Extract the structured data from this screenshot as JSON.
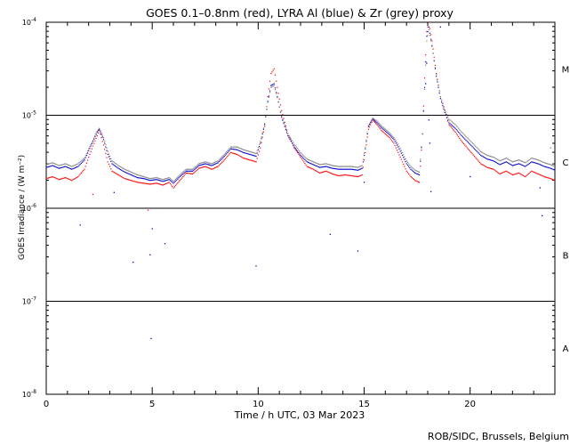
{
  "chart_data": {
    "type": "scatter",
    "title": "GOES 0.1–0.8nm (red), LYRA Al (blue) & Zr (grey) proxy",
    "xlabel": "Time / h UTC, 03 Mar 2023",
    "ylabel": "GOES Irradiance / (W m⁻²)",
    "credit": "ROB/SIDC, Brussels, Belgium",
    "xlim": [
      0,
      24
    ],
    "ylim_log10": [
      -8,
      -4
    ],
    "x_ticks": [
      {
        "v": 0,
        "label": "0"
      },
      {
        "v": 5,
        "label": "5"
      },
      {
        "v": 10,
        "label": "10"
      },
      {
        "v": 15,
        "label": "15"
      },
      {
        "v": 20,
        "label": "20"
      }
    ],
    "y_ticks": [
      {
        "exp": -4,
        "base": "10",
        "sup": "-4"
      },
      {
        "exp": -5,
        "base": "10",
        "sup": "-5"
      },
      {
        "exp": -6,
        "base": "10",
        "sup": "-6"
      },
      {
        "exp": -7,
        "base": "10",
        "sup": "-7"
      },
      {
        "exp": -8,
        "base": "10",
        "sup": "-8"
      }
    ],
    "class_lines_log10": [
      -5,
      -6,
      -7
    ],
    "flare_classes": [
      {
        "label": "M",
        "log10": -4.5
      },
      {
        "label": "C",
        "log10": -5.5
      },
      {
        "label": "B",
        "log10": -6.5
      },
      {
        "label": "A",
        "log10": -7.5
      }
    ],
    "series": [
      {
        "name": "GOES 0.1-0.8nm",
        "color": "#ff0000",
        "x": [
          0,
          0.3,
          0.6,
          0.9,
          1.2,
          1.5,
          1.8,
          2.0,
          2.2,
          2.4,
          2.5,
          2.7,
          2.9,
          3.1,
          3.4,
          3.7,
          4.0,
          4.3,
          4.6,
          4.9,
          5.2,
          5.5,
          5.8,
          6.0,
          6.3,
          6.6,
          6.9,
          7.2,
          7.5,
          7.8,
          8.1,
          8.4,
          8.7,
          9.0,
          9.3,
          9.6,
          9.9,
          10.1,
          10.3,
          10.45,
          10.6,
          10.75,
          10.9,
          11.1,
          11.4,
          11.7,
          12.0,
          12.3,
          12.6,
          12.9,
          13.2,
          13.5,
          13.8,
          14.1,
          14.4,
          14.7,
          14.9,
          15.05,
          15.2,
          15.4,
          15.6,
          15.8,
          16.0,
          16.2,
          16.4,
          16.6,
          16.8,
          17.0,
          17.2,
          17.4,
          17.6,
          17.75,
          17.85,
          17.95,
          18.05,
          18.2,
          18.4,
          18.6,
          18.8,
          19.0,
          19.3,
          19.6,
          19.9,
          20.2,
          20.5,
          20.8,
          21.1,
          21.4,
          21.7,
          22.0,
          22.3,
          22.6,
          22.9,
          23.2,
          23.5,
          23.8,
          24.0
        ],
        "log10_irradiance": [
          -5.68,
          -5.66,
          -5.69,
          -5.67,
          -5.7,
          -5.66,
          -5.58,
          -5.45,
          -5.33,
          -5.22,
          -5.16,
          -5.32,
          -5.5,
          -5.6,
          -5.64,
          -5.68,
          -5.7,
          -5.72,
          -5.73,
          -5.74,
          -5.73,
          -5.75,
          -5.72,
          -5.78,
          -5.7,
          -5.62,
          -5.63,
          -5.57,
          -5.55,
          -5.58,
          -5.55,
          -5.48,
          -5.4,
          -5.42,
          -5.46,
          -5.48,
          -5.5,
          -5.35,
          -5.12,
          -4.8,
          -4.55,
          -4.5,
          -4.7,
          -4.95,
          -5.2,
          -5.35,
          -5.45,
          -5.55,
          -5.58,
          -5.62,
          -5.6,
          -5.63,
          -5.65,
          -5.64,
          -5.65,
          -5.66,
          -5.64,
          -5.4,
          -5.15,
          -5.05,
          -5.1,
          -5.16,
          -5.2,
          -5.24,
          -5.3,
          -5.4,
          -5.5,
          -5.6,
          -5.66,
          -5.7,
          -5.72,
          -5.2,
          -4.6,
          -4.1,
          -4.0,
          -4.2,
          -4.55,
          -4.8,
          -4.95,
          -5.1,
          -5.18,
          -5.28,
          -5.36,
          -5.44,
          -5.52,
          -5.56,
          -5.58,
          -5.63,
          -5.6,
          -5.64,
          -5.62,
          -5.66,
          -5.6,
          -5.63,
          -5.66,
          -5.68,
          -5.7
        ]
      },
      {
        "name": "LYRA Al proxy",
        "color": "#0000cc",
        "x": [
          0,
          0.3,
          0.6,
          0.9,
          1.2,
          1.5,
          1.8,
          2.0,
          2.2,
          2.4,
          2.5,
          2.7,
          2.9,
          3.1,
          3.4,
          3.7,
          4.0,
          4.3,
          4.6,
          4.9,
          5.2,
          5.5,
          5.8,
          6.0,
          6.3,
          6.6,
          6.9,
          7.2,
          7.5,
          7.8,
          8.1,
          8.4,
          8.7,
          9.0,
          9.3,
          9.6,
          9.9,
          10.1,
          10.3,
          10.45,
          10.6,
          10.75,
          10.9,
          11.1,
          11.4,
          11.7,
          12.0,
          12.3,
          12.6,
          12.9,
          13.2,
          13.5,
          13.8,
          14.1,
          14.4,
          14.7,
          14.9,
          15.05,
          15.2,
          15.4,
          15.6,
          15.8,
          16.0,
          16.2,
          16.4,
          16.6,
          16.8,
          17.0,
          17.2,
          17.4,
          17.6,
          17.75,
          17.85,
          17.95,
          18.05,
          18.2,
          18.4,
          18.6,
          18.8,
          19.0,
          19.3,
          19.6,
          19.9,
          20.2,
          20.5,
          20.8,
          21.1,
          21.4,
          21.7,
          22.0,
          22.3,
          22.6,
          22.9,
          23.2,
          23.5,
          23.8,
          24.0
        ],
        "log10_irradiance": [
          -5.56,
          -5.54,
          -5.57,
          -5.55,
          -5.58,
          -5.55,
          -5.48,
          -5.38,
          -5.28,
          -5.18,
          -5.15,
          -5.26,
          -5.42,
          -5.52,
          -5.57,
          -5.61,
          -5.64,
          -5.67,
          -5.68,
          -5.7,
          -5.69,
          -5.71,
          -5.69,
          -5.73,
          -5.66,
          -5.6,
          -5.6,
          -5.54,
          -5.52,
          -5.54,
          -5.51,
          -5.44,
          -5.36,
          -5.37,
          -5.4,
          -5.42,
          -5.44,
          -5.3,
          -5.1,
          -4.85,
          -4.68,
          -4.66,
          -4.8,
          -5.02,
          -5.22,
          -5.34,
          -5.43,
          -5.5,
          -5.53,
          -5.56,
          -5.55,
          -5.57,
          -5.58,
          -5.58,
          -5.58,
          -5.59,
          -5.57,
          -5.36,
          -5.12,
          -5.04,
          -5.08,
          -5.13,
          -5.17,
          -5.21,
          -5.26,
          -5.34,
          -5.43,
          -5.52,
          -5.58,
          -5.62,
          -5.64,
          -5.2,
          -4.7,
          -4.15,
          -4.05,
          -4.25,
          -4.58,
          -4.82,
          -4.97,
          -5.08,
          -5.14,
          -5.22,
          -5.29,
          -5.36,
          -5.43,
          -5.47,
          -5.49,
          -5.53,
          -5.5,
          -5.54,
          -5.52,
          -5.55,
          -5.5,
          -5.52,
          -5.55,
          -5.57,
          -5.59
        ]
      },
      {
        "name": "LYRA Zr proxy",
        "color": "#808080",
        "x": [
          0,
          0.3,
          0.6,
          0.9,
          1.2,
          1.5,
          1.8,
          2.0,
          2.2,
          2.4,
          2.5,
          2.7,
          2.9,
          3.1,
          3.4,
          3.7,
          4.0,
          4.3,
          4.6,
          4.9,
          5.2,
          5.5,
          5.8,
          6.0,
          6.3,
          6.6,
          6.9,
          7.2,
          7.5,
          7.8,
          8.1,
          8.4,
          8.7,
          9.0,
          9.3,
          9.6,
          9.9,
          10.1,
          10.3,
          10.45,
          10.6,
          10.75,
          10.9,
          11.1,
          11.4,
          11.7,
          12.0,
          12.3,
          12.6,
          12.9,
          13.2,
          13.5,
          13.8,
          14.1,
          14.4,
          14.7,
          14.9,
          15.05,
          15.2,
          15.4,
          15.6,
          15.8,
          16.0,
          16.2,
          16.4,
          16.6,
          16.8,
          17.0,
          17.2,
          17.4,
          17.6,
          17.75,
          17.85,
          17.95,
          18.05,
          18.2,
          18.4,
          18.6,
          18.8,
          19.0,
          19.3,
          19.6,
          19.9,
          20.2,
          20.5,
          20.8,
          21.1,
          21.4,
          21.7,
          22.0,
          22.3,
          22.6,
          22.9,
          23.2,
          23.5,
          23.8,
          24.0
        ],
        "log10_irradiance": [
          -5.53,
          -5.51,
          -5.54,
          -5.52,
          -5.55,
          -5.52,
          -5.46,
          -5.36,
          -5.27,
          -5.17,
          -5.14,
          -5.24,
          -5.39,
          -5.49,
          -5.54,
          -5.58,
          -5.61,
          -5.64,
          -5.66,
          -5.68,
          -5.67,
          -5.69,
          -5.67,
          -5.71,
          -5.64,
          -5.58,
          -5.58,
          -5.52,
          -5.5,
          -5.52,
          -5.49,
          -5.42,
          -5.34,
          -5.34,
          -5.37,
          -5.39,
          -5.41,
          -5.28,
          -5.09,
          -4.86,
          -4.7,
          -4.68,
          -4.81,
          -5.01,
          -5.2,
          -5.31,
          -5.4,
          -5.47,
          -5.5,
          -5.53,
          -5.52,
          -5.54,
          -5.55,
          -5.55,
          -5.55,
          -5.56,
          -5.54,
          -5.34,
          -5.11,
          -5.03,
          -5.06,
          -5.11,
          -5.15,
          -5.19,
          -5.24,
          -5.31,
          -5.4,
          -5.49,
          -5.55,
          -5.59,
          -5.61,
          -5.2,
          -4.72,
          -4.2,
          -4.08,
          -4.26,
          -4.56,
          -4.8,
          -4.94,
          -5.04,
          -5.1,
          -5.18,
          -5.25,
          -5.32,
          -5.39,
          -5.43,
          -5.45,
          -5.49,
          -5.46,
          -5.5,
          -5.48,
          -5.51,
          -5.46,
          -5.48,
          -5.51,
          -5.53,
          -5.55
        ]
      }
    ],
    "outliers": [
      {
        "x": 1.6,
        "log10_irradiance": -6.18,
        "color": "#0000cc"
      },
      {
        "x": 2.2,
        "log10_irradiance": -5.85,
        "color": "#ff0000"
      },
      {
        "x": 3.2,
        "log10_irradiance": -5.83,
        "color": "#0000cc"
      },
      {
        "x": 4.1,
        "log10_irradiance": -6.58,
        "color": "#0000cc"
      },
      {
        "x": 4.8,
        "log10_irradiance": -6.02,
        "color": "#ff0000"
      },
      {
        "x": 4.9,
        "log10_irradiance": -6.5,
        "color": "#0000cc"
      },
      {
        "x": 4.95,
        "log10_irradiance": -7.4,
        "color": "#0000cc"
      },
      {
        "x": 5.0,
        "log10_irradiance": -6.22,
        "color": "#0000cc"
      },
      {
        "x": 5.6,
        "log10_irradiance": -6.38,
        "color": "#0000cc"
      },
      {
        "x": 9.9,
        "log10_irradiance": -6.62,
        "color": "#0000cc"
      },
      {
        "x": 13.4,
        "log10_irradiance": -6.28,
        "color": "#0000cc"
      },
      {
        "x": 14.7,
        "log10_irradiance": -6.46,
        "color": "#0000cc"
      },
      {
        "x": 15.0,
        "log10_irradiance": -5.72,
        "color": "#0000cc"
      },
      {
        "x": 17.9,
        "log10_irradiance": -4.66,
        "color": "#0000cc"
      },
      {
        "x": 17.95,
        "log10_irradiance": -4.44,
        "color": "#0000cc"
      },
      {
        "x": 18.05,
        "log10_irradiance": -5.05,
        "color": "#0000cc"
      },
      {
        "x": 18.1,
        "log10_irradiance": -5.3,
        "color": "#0000cc"
      },
      {
        "x": 18.15,
        "log10_irradiance": -5.82,
        "color": "#0000cc"
      },
      {
        "x": 18.6,
        "log10_irradiance": -4.05,
        "color": "#0000cc"
      },
      {
        "x": 20.0,
        "log10_irradiance": -5.66,
        "color": "#0000cc"
      },
      {
        "x": 23.3,
        "log10_irradiance": -5.78,
        "color": "#0000cc"
      },
      {
        "x": 23.4,
        "log10_irradiance": -6.08,
        "color": "#0000cc"
      },
      {
        "x": 23.8,
        "log10_irradiance": -5.35,
        "color": "#808080"
      }
    ]
  }
}
